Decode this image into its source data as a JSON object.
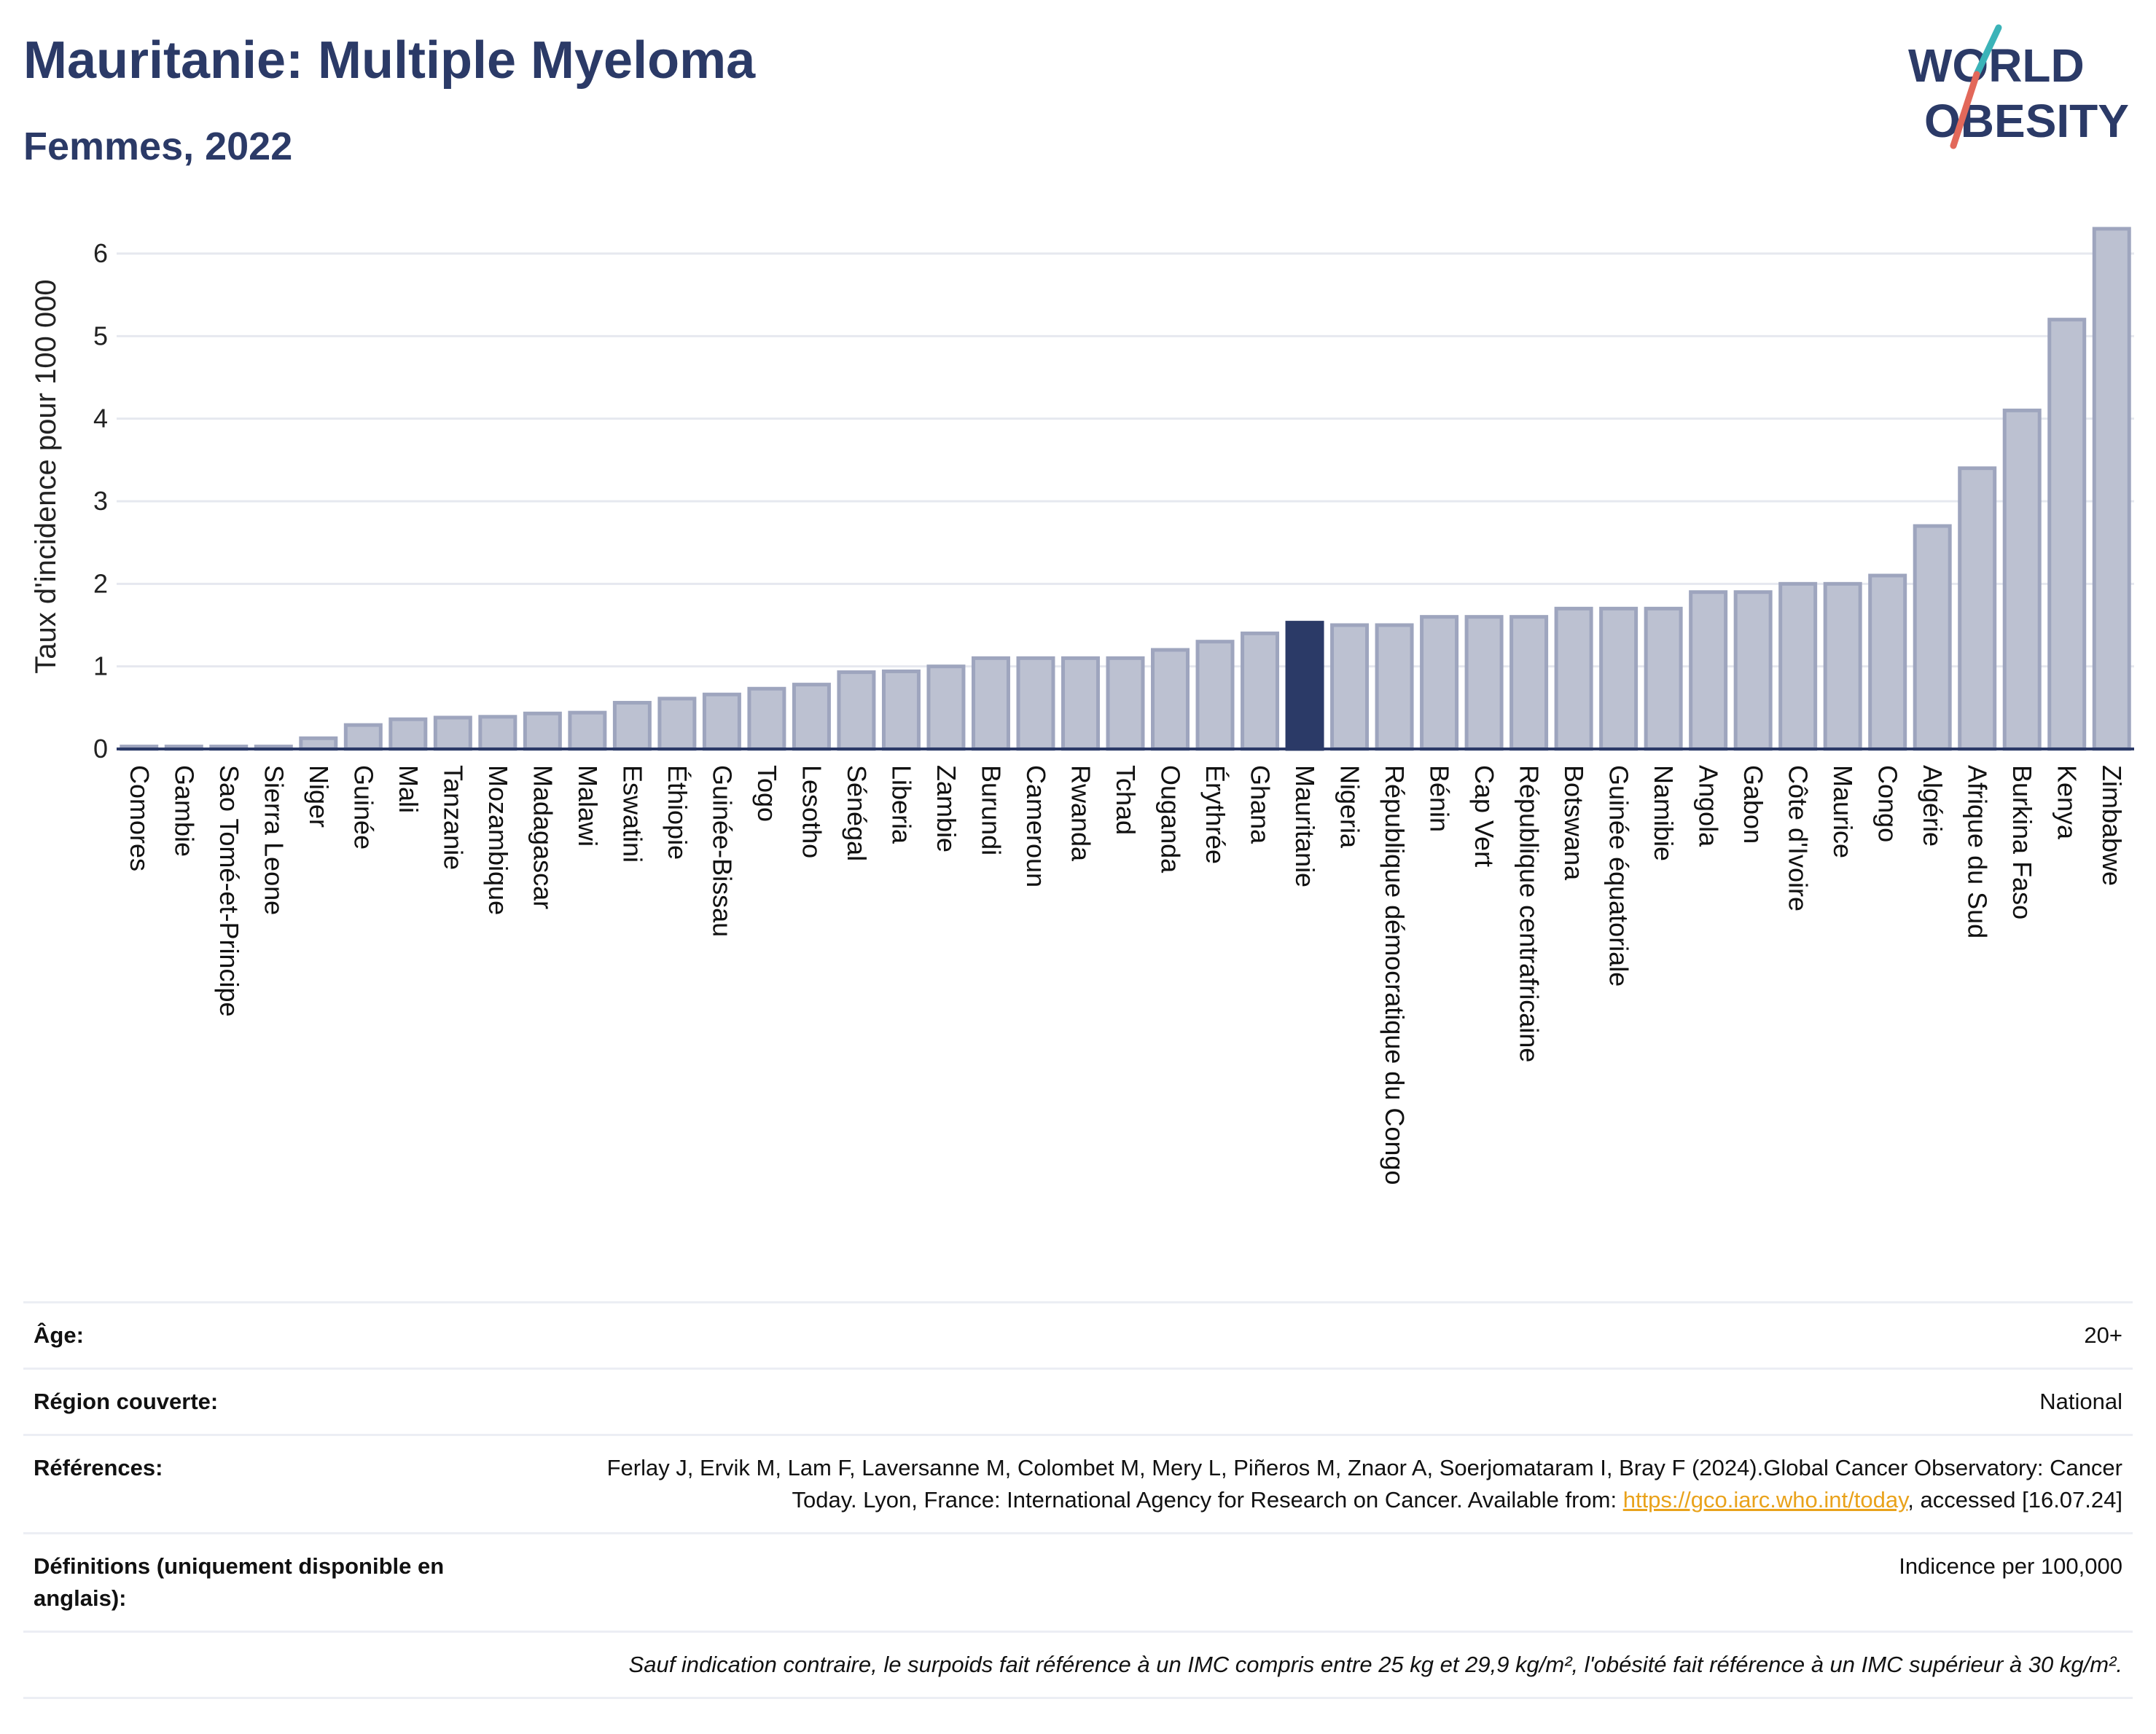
{
  "header": {
    "title": "Mauritanie: Multiple Myeloma",
    "subtitle": "Femmes, 2022"
  },
  "logo": {
    "line1": "WORLD",
    "line2": "OBESITY",
    "colors": {
      "text": "#2b3a67",
      "slash_teal": "#3bb3b8",
      "slash_red": "#e2685a"
    }
  },
  "colors": {
    "bar_default": "#bcc1d1",
    "bar_border": "#9ea5be",
    "bar_highlight": "#2b3a67",
    "axis": "#2b3a67",
    "grid": "#e6e8ef"
  },
  "chart_data": {
    "type": "bar",
    "ylabel": "Taux d'incidence pour 100 000",
    "xlabel": "",
    "ylim": [
      0,
      6.6
    ],
    "yticks": [
      0,
      1,
      2,
      3,
      4,
      5,
      6
    ],
    "grid": true,
    "highlight": "Mauritanie",
    "categories": [
      "Comores",
      "Gambie",
      "Sao Tomé-et-Principe",
      "Sierra Leone",
      "Niger",
      "Guinée",
      "Mali",
      "Tanzanie",
      "Mozambique",
      "Madagascar",
      "Malawi",
      "Eswatini",
      "Éthiopie",
      "Guinée-Bissau",
      "Togo",
      "Lesotho",
      "Sénégal",
      "Liberia",
      "Zambie",
      "Burundi",
      "Cameroun",
      "Rwanda",
      "Tchad",
      "Ouganda",
      "Érythrée",
      "Ghana",
      "Mauritanie",
      "Nigeria",
      "République démocratique du Congo",
      "Bénin",
      "Cap Vert",
      "République centrafricaine",
      "Botswana",
      "Guinée équatoriale",
      "Namibie",
      "Angola",
      "Gabon",
      "Côte d'Ivoire",
      "Maurice",
      "Congo",
      "Algérie",
      "Afrique du Sud",
      "Burkina Faso",
      "Kenya",
      "Zimbabwe"
    ],
    "values": [
      0.03,
      0.03,
      0.03,
      0.03,
      0.13,
      0.29,
      0.36,
      0.38,
      0.39,
      0.43,
      0.44,
      0.56,
      0.61,
      0.66,
      0.73,
      0.78,
      0.93,
      0.94,
      1.0,
      1.1,
      1.1,
      1.1,
      1.1,
      1.2,
      1.3,
      1.4,
      1.53,
      1.5,
      1.5,
      1.6,
      1.6,
      1.6,
      1.7,
      1.7,
      1.7,
      1.9,
      1.9,
      2.0,
      2.0,
      2.1,
      2.7,
      3.4,
      4.1,
      5.2,
      6.3
    ]
  },
  "info": {
    "age_label": "Âge:",
    "age_value": "20+",
    "region_label": "Région couverte:",
    "region_value": "National",
    "refs_label": "Références:",
    "refs_text": "Ferlay J, Ervik M, Lam F, Laversanne M, Colombet M, Mery L, Piñeros M, Znaor A, Soerjomataram I, Bray F (2024).Global Cancer Observatory: Cancer Today. Lyon, France: International Agency for Research on Cancer. Available from: ",
    "refs_link": "https://gco.iarc.who.int/today",
    "refs_suffix": ", accessed [16.07.24]",
    "defs_label": "Définitions (uniquement disponible en anglais):",
    "defs_value": "Indicence per 100,000",
    "note": "Sauf indication contraire, le surpoids fait référence à un IMC compris entre 25 kg et 29,9 kg/m², l'obésité fait référence à un IMC supérieur à 30 kg/m²."
  }
}
